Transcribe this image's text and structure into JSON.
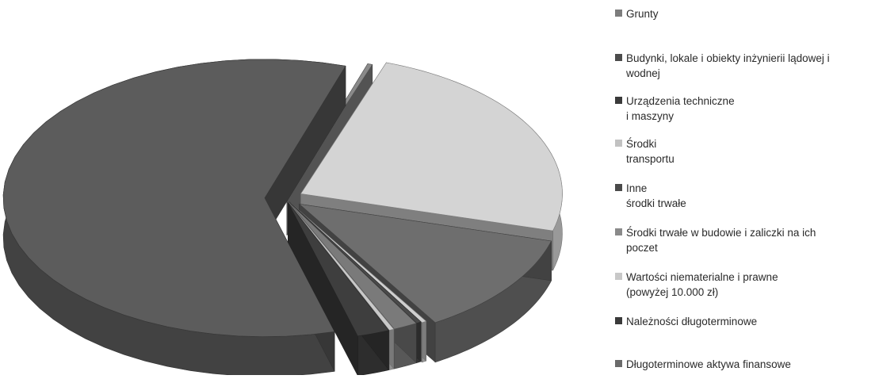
{
  "chart_data": {
    "type": "pie",
    "title": "",
    "legend_placement": "right",
    "exploded": true,
    "three_d": true,
    "series": [
      {
        "name": "",
        "values": [
          0.3,
          24,
          12,
          0.3,
          0.3,
          1.5,
          0.3,
          2.0,
          59.3
        ]
      }
    ],
    "categories": [
      "Grunty",
      "Budynki, lokale i obiekty inżynierii lądowej i\nwodnej",
      "Urządzenia techniczne\ni maszyny",
      "Środki\ntransportu",
      "Inne\nśrodki trwałe",
      "Środki trwałe w budowie i zaliczki na ich\npoczet",
      "Wartości niematerialne i prawne\n(powyżej 10.000 zł)",
      "Należności długoterminowe",
      "Długoterminowe aktywa finansowe"
    ],
    "colors": [
      "#8a8a8a",
      "#d4d4d4",
      "#6e6e6e",
      "#cfcfcf",
      "#4a4a4a",
      "#7a7a7a",
      "#c9c9c9",
      "#3e3e3e",
      "#5c5c5c"
    ],
    "legend_swatch_colors": [
      "#7d7d7d",
      "#4c4c4c",
      "#3a3a3a",
      "#c2c2c2",
      "#4a4a4a",
      "#8a8a8a",
      "#c8c8c8",
      "#3a3a3a",
      "#6a6a6a"
    ]
  }
}
